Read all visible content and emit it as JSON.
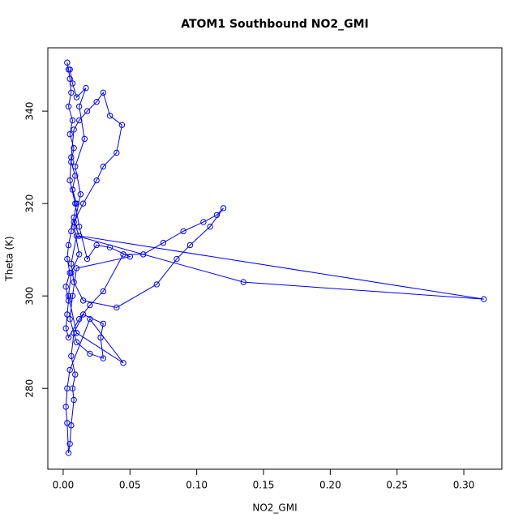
{
  "chart_data": {
    "type": "line",
    "title": "ATOM1 Southbound NO2_GMI",
    "x_label": "NO2_GMI",
    "y_label": "Theta (K)",
    "color": "#0000ff",
    "markers": "open-circle",
    "xlim": [
      -0.0115,
      0.3285
    ],
    "ylim": [
      262.5,
      353.7
    ],
    "xticks": [
      {
        "value": 0,
        "label": "0.00"
      },
      {
        "value": 0.05,
        "label": "0.05"
      },
      {
        "value": 0.1,
        "label": "0.10"
      },
      {
        "value": 0.15,
        "label": "0.15"
      },
      {
        "value": 0.2,
        "label": "0.20"
      },
      {
        "value": 0.25,
        "label": "0.25"
      },
      {
        "value": 0.3,
        "label": "0.30"
      }
    ],
    "yticks": [
      280,
      300,
      320,
      340
    ],
    "x": [
      0.003,
      0.004,
      0.005,
      0.006,
      0.004,
      0.007,
      0.005,
      0.008,
      0.006,
      0.009,
      0.007,
      0.01,
      0.008,
      0.006,
      0.004,
      0.003,
      0.005,
      0.002,
      0.004,
      0.003,
      0.002,
      0.004,
      0.012,
      0.02,
      0.03,
      0.045,
      0.06,
      0.075,
      0.09,
      0.105,
      0.115,
      0.12,
      0.11,
      0.095,
      0.085,
      0.07,
      0.04,
      0.015,
      0.008,
      0.006,
      0.01,
      0.135,
      0.315,
      0.012,
      0.008,
      0.015,
      0.025,
      0.03,
      0.04,
      0.044,
      0.035,
      0.03,
      0.025,
      0.018,
      0.012,
      0.008,
      0.006,
      0.005,
      0.009,
      0.012,
      0.018,
      0.025,
      0.035,
      0.05,
      0.01,
      0.007,
      0.005,
      0.01,
      0.02,
      0.03,
      0.028,
      0.03,
      0.015,
      0.008,
      0.006,
      0.009,
      0.007,
      0.008,
      0.006,
      0.005,
      0.004,
      0.003,
      0.002,
      0.003,
      0.005,
      0.02,
      0.045,
      0.01,
      0.004,
      0.006,
      0.012,
      0.008,
      0.013,
      0.009,
      0.016,
      0.012,
      0.017,
      0.01,
      0.007,
      0.005
    ],
    "y": [
      350.5,
      349,
      347,
      344,
      341,
      338,
      335,
      332,
      329,
      326,
      323,
      320,
      317,
      314,
      311,
      308,
      305,
      302,
      299,
      296,
      293,
      291,
      295,
      298,
      301,
      309,
      309,
      311.5,
      314,
      316,
      317.5,
      319,
      315,
      311,
      308,
      302.5,
      297.5,
      299,
      303,
      307,
      313,
      303,
      299.3,
      313,
      316,
      320,
      325,
      328,
      331,
      337,
      339,
      344,
      342,
      340,
      338,
      336,
      330,
      325,
      320,
      315,
      308,
      311,
      310.5,
      308.5,
      306,
      300,
      295,
      290,
      287.5,
      286.5,
      291,
      294,
      296,
      292,
      287,
      283,
      280,
      277.5,
      272,
      268,
      266,
      272.5,
      276,
      280,
      284,
      295,
      285.5,
      292,
      300,
      305,
      309,
      315,
      322,
      328,
      334,
      341,
      345,
      343,
      346,
      349
    ]
  }
}
